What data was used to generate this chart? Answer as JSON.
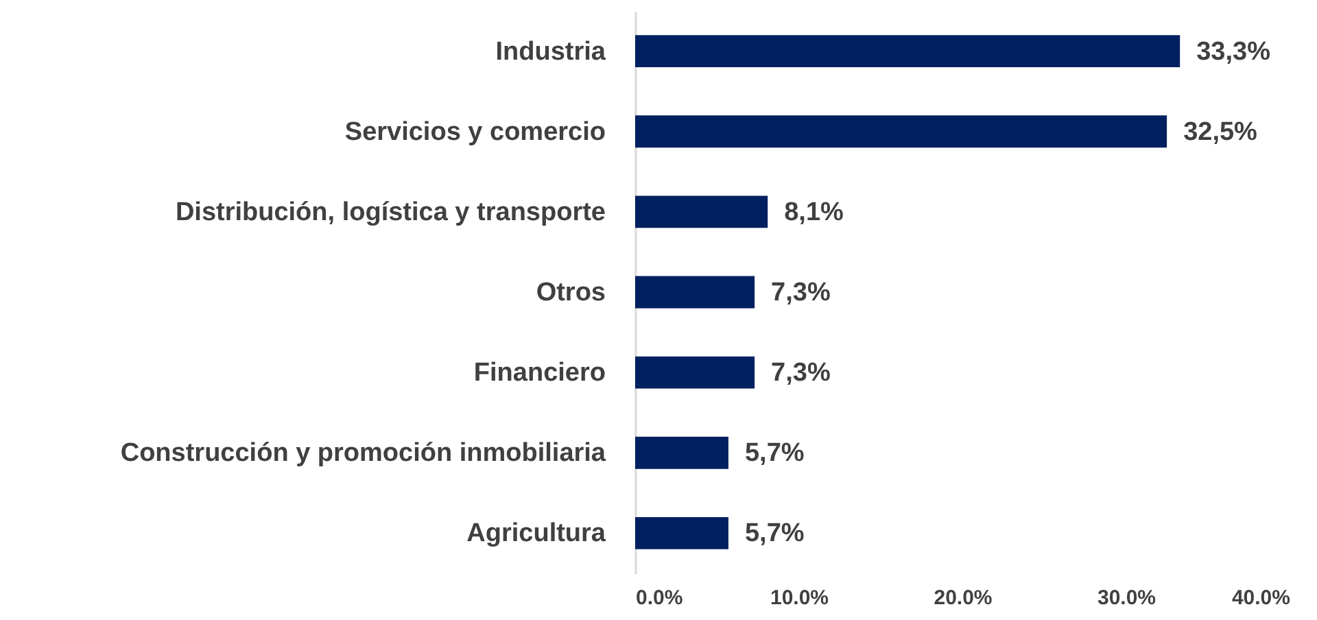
{
  "chart_data": {
    "type": "bar",
    "orientation": "horizontal",
    "categories": [
      "Industria",
      "Servicios y comercio",
      "Distribución, logística y transporte",
      "Otros",
      "Financiero",
      "Construcción y promoción inmobiliaria",
      "Agricultura"
    ],
    "values": [
      33.3,
      32.5,
      8.1,
      7.3,
      7.3,
      5.7,
      5.7
    ],
    "value_labels": [
      "33,3%",
      "32,5%",
      "8,1%",
      "7,3%",
      "7,3%",
      "5,7%",
      "5,7%"
    ],
    "color": "#002060",
    "xlim": [
      0,
      40
    ],
    "xticks": [
      {
        "value": 0,
        "label": "0.0%"
      },
      {
        "value": 10,
        "label": "10.0%"
      },
      {
        "value": 20,
        "label": "20.0%"
      },
      {
        "value": 30,
        "label": "30.0%"
      },
      {
        "value": 40,
        "label": "40.0%"
      }
    ]
  }
}
